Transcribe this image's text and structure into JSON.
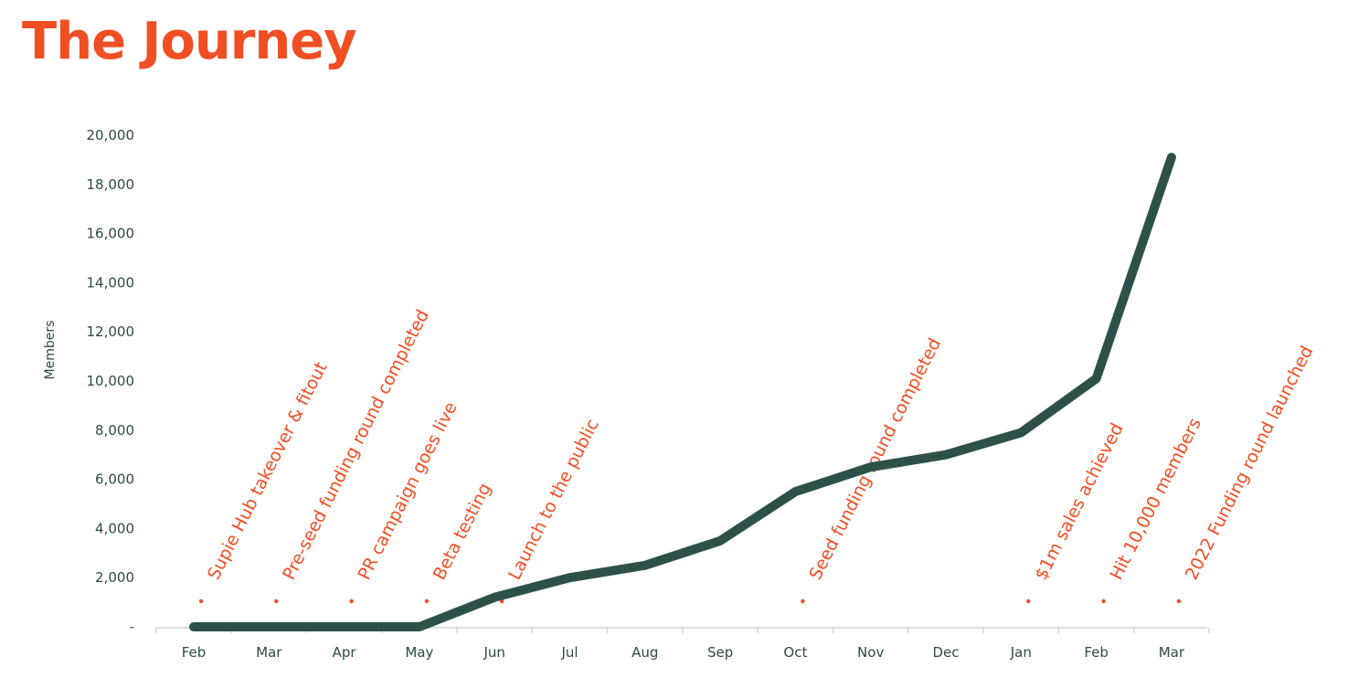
{
  "chart_data": {
    "type": "line",
    "title": "The Journey",
    "ylabel": "Members",
    "xlabel": "",
    "categories": [
      "Feb",
      "Mar",
      "Apr",
      "May",
      "Jun",
      "Jul",
      "Aug",
      "Sep",
      "Oct",
      "Nov",
      "Dec",
      "Jan",
      "Feb",
      "Mar"
    ],
    "values": [
      0,
      0,
      0,
      0,
      1200,
      2000,
      2500,
      3500,
      5500,
      6500,
      7000,
      7900,
      10100,
      19100
    ],
    "ylim": [
      0,
      20000
    ],
    "yticks": [
      0,
      2000,
      4000,
      6000,
      8000,
      10000,
      12000,
      14000,
      16000,
      18000,
      20000
    ],
    "ytick_labels": [
      "-",
      "2,000",
      "4,000",
      "6,000",
      "8,000",
      "10,000",
      "12,000",
      "14,000",
      "16,000",
      "18,000",
      "20,000"
    ],
    "grid": false,
    "legend": "none",
    "line_color": "#2d5149",
    "annotation_color": "#f04e23",
    "annotations": [
      {
        "x_index": 0,
        "text": "Supie Hub takeover & fitout"
      },
      {
        "x_index": 1,
        "text": "Pre-seed funding round completed"
      },
      {
        "x_index": 2,
        "text": "PR campaign goes live"
      },
      {
        "x_index": 3,
        "text": "Beta testing"
      },
      {
        "x_index": 4,
        "text": "Launch to the public"
      },
      {
        "x_index": 8,
        "text": "Seed funding round completed"
      },
      {
        "x_index": 11,
        "text": "$1m sales achieved"
      },
      {
        "x_index": 12,
        "text": "Hit 10,000 members"
      },
      {
        "x_index": 13,
        "text": "2022 Funding round launched"
      }
    ]
  }
}
